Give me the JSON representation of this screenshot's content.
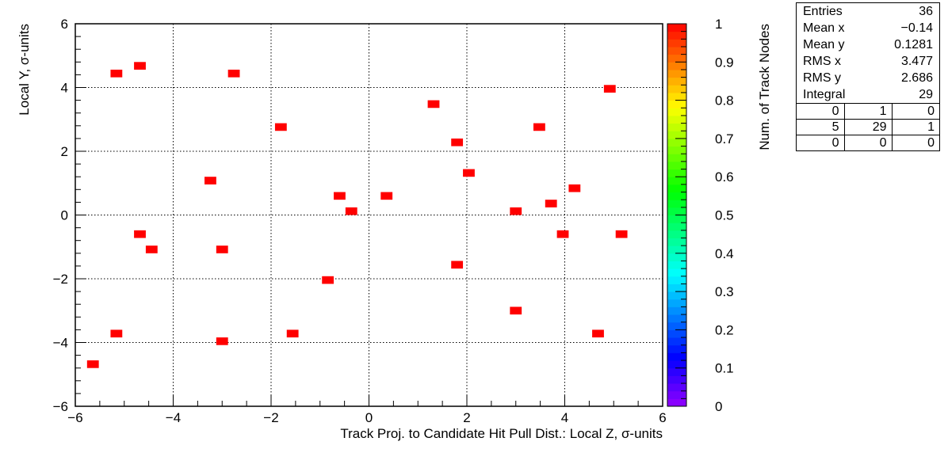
{
  "chart_data": {
    "type": "heatmap",
    "title": "",
    "xlabel": "Track Proj. to Candidate Hit Pull Dist.: Local Z, σ-units",
    "ylabel": "Local Y, σ-units",
    "zlabel": "Num. of Track Nodes",
    "xlim": [
      -6,
      6
    ],
    "ylim": [
      -6,
      6
    ],
    "zlim": [
      0,
      1
    ],
    "bin_size": [
      0.24,
      0.24
    ],
    "grid": true,
    "x_ticks": [
      {
        "v": -6,
        "label": "−6"
      },
      {
        "v": -4,
        "label": "−4"
      },
      {
        "v": -2,
        "label": "−2"
      },
      {
        "v": 0,
        "label": "0"
      },
      {
        "v": 2,
        "label": "2"
      },
      {
        "v": 4,
        "label": "4"
      },
      {
        "v": 6,
        "label": "6"
      }
    ],
    "y_ticks": [
      {
        "v": -6,
        "label": "−6"
      },
      {
        "v": -4,
        "label": "−4"
      },
      {
        "v": -2,
        "label": "−2"
      },
      {
        "v": 0,
        "label": "0"
      },
      {
        "v": 2,
        "label": "2"
      },
      {
        "v": 4,
        "label": "4"
      },
      {
        "v": 6,
        "label": "6"
      }
    ],
    "z_ticks": [
      {
        "v": 0,
        "label": "0"
      },
      {
        "v": 0.1,
        "label": "0.1"
      },
      {
        "v": 0.2,
        "label": "0.2"
      },
      {
        "v": 0.3,
        "label": "0.3"
      },
      {
        "v": 0.4,
        "label": "0.4"
      },
      {
        "v": 0.5,
        "label": "0.5"
      },
      {
        "v": 0.6,
        "label": "0.6"
      },
      {
        "v": 0.7,
        "label": "0.7"
      },
      {
        "v": 0.8,
        "label": "0.8"
      },
      {
        "v": 0.9,
        "label": "0.9"
      },
      {
        "v": 1,
        "label": "1"
      }
    ],
    "points": [
      {
        "x": -5.64,
        "y": -4.68,
        "z": 1
      },
      {
        "x": -5.16,
        "y": 4.44,
        "z": 1
      },
      {
        "x": -5.16,
        "y": -3.72,
        "z": 1
      },
      {
        "x": -4.68,
        "y": 4.68,
        "z": 1
      },
      {
        "x": -4.68,
        "y": -0.6,
        "z": 1
      },
      {
        "x": -4.44,
        "y": -1.08,
        "z": 1
      },
      {
        "x": -3.24,
        "y": 1.08,
        "z": 1
      },
      {
        "x": -3.0,
        "y": -1.08,
        "z": 1
      },
      {
        "x": -3.0,
        "y": -3.96,
        "z": 1
      },
      {
        "x": -2.76,
        "y": 4.44,
        "z": 1
      },
      {
        "x": -1.8,
        "y": 2.76,
        "z": 1
      },
      {
        "x": -1.56,
        "y": -3.72,
        "z": 1
      },
      {
        "x": -0.84,
        "y": -2.04,
        "z": 1
      },
      {
        "x": -0.6,
        "y": 0.6,
        "z": 1
      },
      {
        "x": -0.36,
        "y": 0.12,
        "z": 1
      },
      {
        "x": 0.36,
        "y": 0.6,
        "z": 1
      },
      {
        "x": 1.32,
        "y": 3.48,
        "z": 1
      },
      {
        "x": 1.8,
        "y": 2.28,
        "z": 1
      },
      {
        "x": 1.8,
        "y": -1.56,
        "z": 1
      },
      {
        "x": 2.04,
        "y": 1.32,
        "z": 1
      },
      {
        "x": 3.0,
        "y": 0.12,
        "z": 1
      },
      {
        "x": 3.0,
        "y": -3.0,
        "z": 1
      },
      {
        "x": 3.48,
        "y": 2.76,
        "z": 1
      },
      {
        "x": 3.72,
        "y": 0.36,
        "z": 1
      },
      {
        "x": 3.96,
        "y": -0.6,
        "z": 1
      },
      {
        "x": 4.2,
        "y": 0.84,
        "z": 1
      },
      {
        "x": 4.68,
        "y": -3.72,
        "z": 1
      },
      {
        "x": 4.92,
        "y": 3.96,
        "z": 1
      },
      {
        "x": 5.16,
        "y": -0.6,
        "z": 1
      }
    ]
  },
  "stats": {
    "rows": [
      {
        "label": "Entries",
        "value": "36"
      },
      {
        "label": "Mean x",
        "value": "−0.14"
      },
      {
        "label": "Mean y",
        "value": "0.1281"
      },
      {
        "label": "RMS x",
        "value": "3.477"
      },
      {
        "label": "RMS y",
        "value": "2.686"
      },
      {
        "label": "Integral",
        "value": "29"
      }
    ],
    "grid": [
      [
        "0",
        "1",
        "0"
      ],
      [
        "5",
        "29",
        "1"
      ],
      [
        "0",
        "0",
        "0"
      ]
    ]
  }
}
